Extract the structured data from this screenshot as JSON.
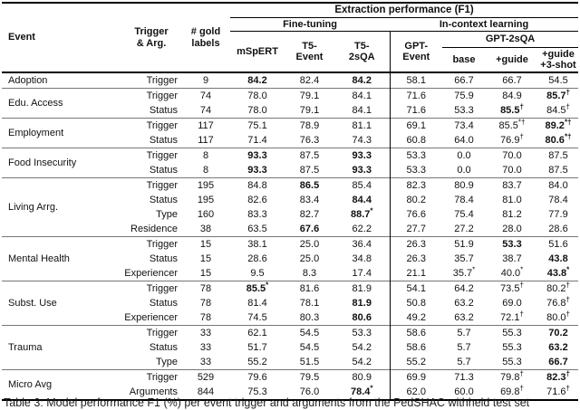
{
  "header": {
    "title": "Extraction performance (F1)",
    "group_fine_tuning": "Fine-tuning",
    "group_in_context": "In-context learning",
    "col_event": "Event",
    "col_trigger_arg": "Trigger\n& Arg.",
    "col_gold": "# gold\nlabels",
    "model_mspert": "mSpERT",
    "model_t5_event": "T5-\nEvent",
    "model_t5_2sqa": "T5-\n2sQA",
    "model_gpt_event": "GPT-\nEvent",
    "model_gpt_2sqa": "GPT-2sQA",
    "sub_base": "base",
    "sub_guide": "+guide",
    "sub_guide_shot": "+guide\n+3-shot"
  },
  "table": {
    "groups": [
      {
        "event": "Adoption",
        "rows": [
          {
            "arg": "Trigger",
            "n": "9",
            "vals": [
              {
                "v": "84.2",
                "b": 1
              },
              "82.4",
              {
                "v": "84.2",
                "b": 1
              },
              "58.1",
              "66.7",
              "66.7",
              "54.5"
            ]
          }
        ]
      },
      {
        "event": "Edu. Access",
        "rows": [
          {
            "arg": "Trigger",
            "n": "74",
            "vals": [
              "78.0",
              "79.1",
              "84.1",
              "71.6",
              "75.9",
              "84.9",
              {
                "v": "85.7",
                "b": 1,
                "s": "†"
              }
            ]
          },
          {
            "arg": "Status",
            "n": "74",
            "vals": [
              "78.0",
              "79.1",
              "84.1",
              "71.6",
              "53.3",
              {
                "v": "85.5",
                "b": 1,
                "s": "†"
              },
              {
                "v": "84.5",
                "s": "†"
              }
            ]
          }
        ]
      },
      {
        "event": "Employment",
        "rows": [
          {
            "arg": "Trigger",
            "n": "117",
            "vals": [
              "75.1",
              "78.9",
              "81.1",
              "69.1",
              "73.4",
              {
                "v": "85.5",
                "s": "*†"
              },
              {
                "v": "89.2",
                "b": 1,
                "s": "*†"
              }
            ]
          },
          {
            "arg": "Status",
            "n": "117",
            "vals": [
              "71.4",
              "76.3",
              "74.3",
              "60.8",
              "64.0",
              {
                "v": "76.9",
                "s": "†"
              },
              {
                "v": "80.6",
                "b": 1,
                "s": "*†"
              }
            ]
          }
        ]
      },
      {
        "event": "Food Insecurity",
        "rows": [
          {
            "arg": "Trigger",
            "n": "8",
            "vals": [
              {
                "v": "93.3",
                "b": 1
              },
              "87.5",
              {
                "v": "93.3",
                "b": 1
              },
              "53.3",
              "0.0",
              "70.0",
              "87.5"
            ]
          },
          {
            "arg": "Status",
            "n": "8",
            "vals": [
              {
                "v": "93.3",
                "b": 1
              },
              "87.5",
              {
                "v": "93.3",
                "b": 1
              },
              "53.3",
              "0.0",
              "70.0",
              "87.5"
            ]
          }
        ]
      },
      {
        "event": "Living Arrg.",
        "rows": [
          {
            "arg": "Trigger",
            "n": "195",
            "vals": [
              "84.8",
              {
                "v": "86.5",
                "b": 1
              },
              "85.4",
              "82.3",
              "80.9",
              "83.7",
              "84.0"
            ]
          },
          {
            "arg": "Status",
            "n": "195",
            "vals": [
              "82.6",
              "83.4",
              {
                "v": "84.4",
                "b": 1
              },
              "80.2",
              "78.4",
              "81.0",
              "78.4"
            ]
          },
          {
            "arg": "Type",
            "n": "160",
            "vals": [
              "83.3",
              "82.7",
              {
                "v": "88.7",
                "b": 1,
                "s": "*"
              },
              "76.6",
              "75.4",
              "81.2",
              "77.9"
            ]
          },
          {
            "arg": "Residence",
            "n": "38",
            "vals": [
              "63.5",
              {
                "v": "67.6",
                "b": 1
              },
              "62.2",
              "27.7",
              "27.2",
              "28.0",
              "28.6"
            ]
          }
        ]
      },
      {
        "event": "Mental Health",
        "rows": [
          {
            "arg": "Trigger",
            "n": "15",
            "vals": [
              "38.1",
              "25.0",
              "36.4",
              "26.3",
              "51.9",
              {
                "v": "53.3",
                "b": 1
              },
              "51.6"
            ]
          },
          {
            "arg": "Status",
            "n": "15",
            "vals": [
              "28.6",
              "25.0",
              "34.8",
              "26.3",
              "35.7",
              "38.7",
              {
                "v": "43.8",
                "b": 1
              }
            ]
          },
          {
            "arg": "Experiencer",
            "n": "15",
            "vals": [
              "9.5",
              "8.3",
              "17.4",
              "21.1",
              {
                "v": "35.7",
                "s": "*"
              },
              {
                "v": "40.0",
                "s": "*"
              },
              {
                "v": "43.8",
                "b": 1,
                "s": "*"
              }
            ]
          }
        ]
      },
      {
        "event": "Subst. Use",
        "rows": [
          {
            "arg": "Trigger",
            "n": "78",
            "vals": [
              {
                "v": "85.5",
                "b": 1,
                "s": "*"
              },
              "81.6",
              "81.9",
              "54.1",
              "64.2",
              {
                "v": "73.5",
                "s": "†"
              },
              {
                "v": "80.2",
                "s": "†"
              }
            ]
          },
          {
            "arg": "Status",
            "n": "78",
            "vals": [
              "81.4",
              "78.1",
              {
                "v": "81.9",
                "b": 1
              },
              "50.8",
              "63.2",
              "69.0",
              {
                "v": "76.8",
                "s": "†"
              }
            ]
          },
          {
            "arg": "Experiencer",
            "n": "78",
            "vals": [
              "74.5",
              "80.3",
              {
                "v": "80.6",
                "b": 1
              },
              "49.2",
              "63.2",
              {
                "v": "72.1",
                "s": "†"
              },
              {
                "v": "80.0",
                "s": "†"
              }
            ]
          }
        ]
      },
      {
        "event": "Trauma",
        "rows": [
          {
            "arg": "Trigger",
            "n": "33",
            "vals": [
              "62.1",
              "54.5",
              "53.3",
              "58.6",
              "5.7",
              "55.3",
              {
                "v": "70.2",
                "b": 1
              }
            ]
          },
          {
            "arg": "Status",
            "n": "33",
            "vals": [
              "51.7",
              "54.5",
              "54.2",
              "58.6",
              "5.7",
              "55.3",
              {
                "v": "63.2",
                "b": 1
              }
            ]
          },
          {
            "arg": "Type",
            "n": "33",
            "vals": [
              "55.2",
              "51.5",
              "54.2",
              "55.2",
              "5.7",
              "55.3",
              {
                "v": "66.7",
                "b": 1
              }
            ]
          }
        ]
      },
      {
        "event": "Micro Avg",
        "rows": [
          {
            "arg": "Trigger",
            "n": "529",
            "vals": [
              "79.6",
              "79.5",
              "80.9",
              "69.9",
              "71.3",
              {
                "v": "79.8",
                "s": "†"
              },
              {
                "v": "82.3",
                "b": 1,
                "s": "†"
              }
            ]
          },
          {
            "arg": "Arguments",
            "n": "844",
            "vals": [
              "75.3",
              "76.0",
              {
                "v": "78.4",
                "b": 1,
                "s": "*"
              },
              "62.0",
              "60.0",
              {
                "v": "69.8",
                "s": "†"
              },
              {
                "v": "71.6",
                "s": "†"
              }
            ]
          }
        ]
      }
    ]
  },
  "caption": "Table 3: Model performance F1 (%) per event trigger and arguments from the PedSHAC withheld test set"
}
